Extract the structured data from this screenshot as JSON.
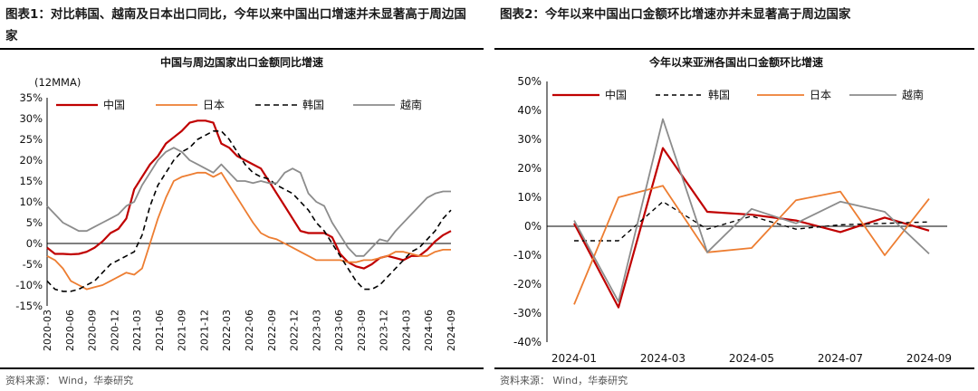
{
  "panel1": {
    "fig_label": "图表1：",
    "fig_title": "对比韩国、越南及日本出口同比，今年以来中国出口增速并未显著高于周边国家",
    "source": "资料来源：  Wind，华泰研究"
  },
  "panel2": {
    "fig_label": "图表2：",
    "fig_title": "今年以来中国出口金额环比增速亦并未显著高于周边国家",
    "source": "资料来源：  Wind，华泰研究"
  },
  "chart_data": [
    {
      "type": "line",
      "title": "中国与周边国家出口金额同比增速",
      "unit_label": "(12MMA)",
      "ylim": [
        -15,
        35
      ],
      "yticks": [
        "35%",
        "30%",
        "25%",
        "20%",
        "15%",
        "10%",
        "5%",
        "0%",
        "-5%",
        "-10%",
        "-15%"
      ],
      "ytick_values": [
        35,
        30,
        25,
        20,
        15,
        10,
        5,
        0,
        -5,
        -10,
        -15
      ],
      "xticks": [
        "2020-03",
        "2020-06",
        "2020-09",
        "2020-12",
        "2021-03",
        "2021-06",
        "2021-09",
        "2021-12",
        "2022-03",
        "2022-06",
        "2022-09",
        "2022-12",
        "2023-03",
        "2023-06",
        "2023-09",
        "2023-12",
        "2024-03",
        "2024-06",
        "2024-09"
      ],
      "legend_placement": "top",
      "grid": false,
      "series": [
        {
          "name": "中国",
          "color": "#c00000",
          "dash": "",
          "width": 2.2,
          "values": [
            -1,
            -2.5,
            -2.5,
            -2.6,
            -2.5,
            -2,
            -1,
            0.5,
            2.5,
            3.5,
            6,
            13,
            16,
            19,
            21,
            24,
            25.5,
            27,
            29,
            29.5,
            29.5,
            29,
            24,
            23,
            21,
            20,
            19,
            18,
            15,
            12,
            9,
            6,
            3,
            2.5,
            2.5,
            2.5,
            1.5,
            -2.5,
            -4.5,
            -5.5,
            -6,
            -5,
            -3.5,
            -3,
            -3.5,
            -4,
            -3,
            -3,
            -1.5,
            0.5,
            2,
            3
          ]
        },
        {
          "name": "日本",
          "color": "#ed7d31",
          "dash": "",
          "width": 1.8,
          "values": [
            -3,
            -4,
            -6,
            -9,
            -10,
            -11,
            -10.5,
            -10,
            -9,
            -8,
            -7,
            -7.5,
            -6,
            0,
            6,
            11,
            15,
            16,
            16.5,
            17,
            17,
            16,
            17,
            14,
            11,
            8,
            5,
            2.5,
            1.5,
            1,
            0,
            -1,
            -2,
            -3,
            -4,
            -4,
            -4,
            -4,
            -4.5,
            -4.5,
            -4,
            -4,
            -3.5,
            -3,
            -2,
            -2,
            -2.5,
            -3,
            -3,
            -2,
            -1.5,
            -1.5
          ]
        },
        {
          "name": "韩国",
          "color": "#000000",
          "dash": "6,4",
          "width": 1.6,
          "values": [
            -9,
            -11,
            -11.5,
            -11.5,
            -11,
            -10,
            -9,
            -7,
            -5,
            -4,
            -3,
            -2,
            2,
            9,
            14,
            17,
            20,
            22,
            23,
            25,
            26,
            27,
            27,
            25,
            22,
            19,
            17,
            16,
            15.5,
            14,
            13,
            12,
            10,
            8,
            5,
            3,
            0,
            -3,
            -6,
            -9,
            -11,
            -11,
            -10,
            -8,
            -6,
            -4,
            -2,
            -1,
            1,
            3,
            6,
            8
          ]
        },
        {
          "name": "越南",
          "color": "#8c8c8c",
          "dash": "",
          "width": 1.8,
          "values": [
            9,
            7,
            5,
            4,
            3,
            3,
            4,
            5,
            6,
            7,
            9,
            10,
            14,
            17,
            20,
            22,
            23,
            22,
            20,
            19,
            18,
            17,
            19,
            17,
            15,
            15,
            14.5,
            15,
            14.5,
            14.5,
            17,
            18,
            17,
            12,
            10,
            9,
            5,
            2,
            -1,
            -3,
            -3,
            -1,
            1,
            0.5,
            3,
            5,
            7,
            9,
            11,
            12,
            12.5,
            12.5
          ]
        }
      ]
    },
    {
      "type": "line",
      "title": "今年以来亚洲各国出口金额环比增速",
      "ylim": [
        -40,
        50
      ],
      "yticks": [
        "50%",
        "40%",
        "30%",
        "20%",
        "10%",
        "0%",
        "-10%",
        "-20%",
        "-30%",
        "-40%"
      ],
      "ytick_values": [
        50,
        40,
        30,
        20,
        10,
        0,
        -10,
        -20,
        -30,
        -40
      ],
      "categories": [
        "2024-01",
        "2024-02",
        "2024-03",
        "2024-04",
        "2024-05",
        "2024-06",
        "2024-07",
        "2024-08",
        "2024-09"
      ],
      "xticks": [
        "2024-01",
        "2024-03",
        "2024-05",
        "2024-07",
        "2024-09"
      ],
      "legend_placement": "top",
      "grid": false,
      "series": [
        {
          "name": "中国",
          "color": "#c00000",
          "dash": "",
          "width": 2.2,
          "values": [
            1,
            -28,
            27,
            5,
            4,
            2,
            -2,
            3,
            -1.5
          ]
        },
        {
          "name": "韩国",
          "color": "#000000",
          "dash": "5,4",
          "width": 1.4,
          "values": [
            -5,
            -5,
            8.5,
            -1,
            3.5,
            -1,
            0.5,
            1,
            1.5
          ]
        },
        {
          "name": "日本",
          "color": "#ed7d31",
          "dash": "",
          "width": 1.8,
          "values": [
            -27,
            10,
            14,
            -9,
            -7.5,
            9,
            12,
            -10,
            9.5
          ]
        },
        {
          "name": "越南",
          "color": "#8c8c8c",
          "dash": "",
          "width": 1.8,
          "values": [
            2,
            -26,
            37,
            -9,
            6,
            1,
            8.5,
            5,
            -9.5
          ]
        }
      ]
    }
  ]
}
